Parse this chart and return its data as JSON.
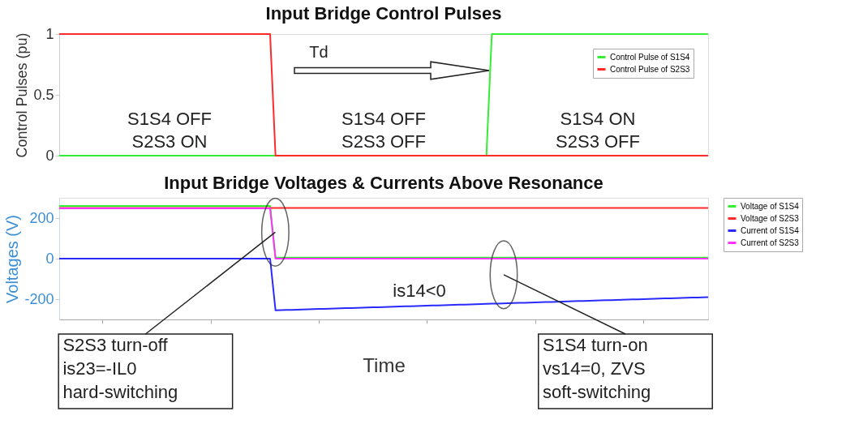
{
  "chart_data": [
    {
      "type": "line",
      "title": "Input Bridge Control Pulses",
      "ylabel": "Control Pulses (pu)",
      "ylim": [
        0,
        1
      ],
      "yticks": [
        0,
        0.5,
        1
      ],
      "tick_labels": "y",
      "legend": "top right",
      "categories": [
        null,
        null,
        null,
        null,
        null,
        null,
        null,
        null,
        null,
        null,
        null,
        null,
        null,
        null,
        null,
        null,
        null,
        null,
        null,
        null,
        null,
        null,
        null,
        null,
        null,
        null,
        null,
        null,
        null,
        null,
        null,
        null,
        null,
        null,
        null,
        null,
        null,
        null,
        null,
        null,
        null,
        null,
        null,
        null,
        null,
        null,
        null,
        null,
        null,
        null,
        null,
        null,
        null,
        null,
        null,
        null,
        null,
        null,
        null,
        null,
        null,
        null,
        null,
        null,
        null,
        null,
        null,
        null,
        null,
        null,
        null,
        null,
        null,
        null,
        null,
        null,
        null,
        null,
        null,
        null,
        null,
        null,
        null,
        null,
        null,
        null,
        null,
        null,
        null,
        null,
        null,
        null,
        null,
        null,
        null,
        null,
        null,
        null,
        null,
        null,
        null,
        null,
        null,
        null,
        null,
        null,
        null,
        null,
        null,
        null,
        null,
        null,
        null,
        null,
        null,
        null,
        null,
        null,
        null,
        null,
        null
      ],
      "series": [
        {
          "name": "Control Pulse of S1S4",
          "color": "#33ee33",
          "values": [
            0,
            0,
            0,
            0,
            0,
            0,
            0,
            0,
            0,
            0,
            0,
            0,
            0,
            0,
            0,
            0,
            0,
            0,
            0,
            0,
            0,
            0,
            0,
            0,
            0,
            0,
            0,
            0,
            0,
            0,
            0,
            0,
            0,
            0,
            0,
            0,
            0,
            0,
            0,
            0,
            0,
            0,
            0,
            0,
            0,
            0,
            0,
            0,
            0,
            0,
            0,
            0,
            0,
            0,
            0,
            0,
            0,
            0,
            0,
            0,
            0,
            0,
            0,
            0,
            0,
            0,
            0,
            0,
            0,
            0,
            0,
            0,
            0,
            0,
            0,
            0,
            0,
            0,
            0,
            0,
            1,
            1,
            1,
            1,
            1,
            1,
            1,
            1,
            1,
            1,
            1,
            1,
            1,
            1,
            1,
            1,
            1,
            1,
            1,
            1,
            1,
            1,
            1,
            1,
            1,
            1,
            1,
            1,
            1,
            1,
            1,
            1,
            1,
            1,
            1,
            1,
            1,
            1,
            1,
            1,
            1
          ]
        },
        {
          "name": "Control Pulse of S2S3",
          "color": "#ff2a2a",
          "values": [
            1,
            1,
            1,
            1,
            1,
            1,
            1,
            1,
            1,
            1,
            1,
            1,
            1,
            1,
            1,
            1,
            1,
            1,
            1,
            1,
            1,
            1,
            1,
            1,
            1,
            1,
            1,
            1,
            1,
            1,
            1,
            1,
            1,
            1,
            1,
            1,
            1,
            1,
            1,
            1,
            0,
            0,
            0,
            0,
            0,
            0,
            0,
            0,
            0,
            0,
            0,
            0,
            0,
            0,
            0,
            0,
            0,
            0,
            0,
            0,
            0,
            0,
            0,
            0,
            0,
            0,
            0,
            0,
            0,
            0,
            0,
            0,
            0,
            0,
            0,
            0,
            0,
            0,
            0,
            0,
            0,
            0,
            0,
            0,
            0,
            0,
            0,
            0,
            0,
            0,
            0,
            0,
            0,
            0,
            0,
            0,
            0,
            0,
            0,
            0,
            0,
            0,
            0,
            0,
            0,
            0,
            0,
            0,
            0,
            0,
            0,
            0,
            0,
            0,
            0,
            0,
            0,
            0,
            0,
            0,
            0
          ]
        }
      ],
      "annotations": [
        "S1S4 OFF\nS2S3 ON",
        "S1S4 OFF\nS2S3 OFF",
        "S1S4 ON\nS2S3 OFF",
        "Td"
      ]
    },
    {
      "type": "line",
      "title": "Input Bridge Voltages & Currents Above Resonance",
      "ylabel": "Voltages (V)",
      "xlabel": "Time",
      "ylim": [
        -300,
        300
      ],
      "yticks": [
        -200,
        0,
        200
      ],
      "tick_labels": "y",
      "legend": "right",
      "categories": [
        null,
        null,
        null,
        null,
        null,
        null,
        null,
        null,
        null,
        null,
        null,
        null,
        null,
        null,
        null,
        null,
        null,
        null,
        null,
        null,
        null,
        null,
        null,
        null,
        null,
        null,
        null,
        null,
        null,
        null,
        null,
        null,
        null,
        null,
        null,
        null,
        null,
        null,
        null,
        null,
        null,
        null,
        null,
        null,
        null,
        null,
        null,
        null,
        null,
        null,
        null,
        null,
        null,
        null,
        null,
        null,
        null,
        null,
        null,
        null,
        null,
        null,
        null,
        null,
        null,
        null,
        null,
        null,
        null,
        null,
        null,
        null,
        null,
        null,
        null,
        null,
        null,
        null,
        null,
        null,
        null,
        null,
        null,
        null,
        null,
        null,
        null,
        null,
        null,
        null,
        null,
        null,
        null,
        null,
        null,
        null,
        null,
        null,
        null,
        null,
        null,
        null,
        null,
        null,
        null,
        null,
        null,
        null,
        null,
        null,
        null,
        null,
        null,
        null,
        null,
        null,
        null,
        null,
        null,
        null,
        null
      ],
      "series": [
        {
          "name": "Voltage of S1S4",
          "color": "#33ee33",
          "values": [
            260,
            260,
            260,
            260,
            260,
            260,
            260,
            260,
            260,
            260,
            260,
            260,
            260,
            260,
            260,
            260,
            260,
            260,
            260,
            260,
            260,
            260,
            260,
            260,
            260,
            260,
            260,
            260,
            260,
            260,
            260,
            260,
            260,
            260,
            260,
            260,
            260,
            260,
            260,
            260,
            5,
            5,
            5,
            5,
            5,
            5,
            5,
            5,
            5,
            5,
            5,
            5,
            5,
            5,
            5,
            5,
            5,
            5,
            5,
            5,
            5,
            5,
            5,
            5,
            5,
            5,
            5,
            5,
            5,
            5,
            5,
            5,
            5,
            5,
            5,
            5,
            5,
            5,
            5,
            5,
            5,
            5,
            5,
            5,
            5,
            5,
            5,
            5,
            5,
            5,
            5,
            5,
            5,
            5,
            5,
            5,
            5,
            5,
            5,
            5,
            5,
            5,
            5,
            5,
            5,
            5,
            5,
            5,
            5,
            5,
            5,
            5,
            5,
            5,
            5,
            5,
            5,
            5,
            5,
            5,
            5
          ]
        },
        {
          "name": "Voltage of S2S3",
          "color": "#ff2a2a",
          "values": [
            250,
            250,
            250,
            250,
            250,
            250,
            250,
            250,
            250,
            250,
            250,
            250,
            250,
            250,
            250,
            250,
            250,
            250,
            250,
            250,
            250,
            250,
            250,
            250,
            250,
            250,
            250,
            250,
            250,
            250,
            250,
            250,
            250,
            250,
            250,
            250,
            250,
            250,
            250,
            250,
            250,
            250,
            250,
            250,
            250,
            250,
            250,
            250,
            250,
            250,
            250,
            250,
            250,
            250,
            250,
            250,
            250,
            250,
            250,
            250,
            250,
            250,
            250,
            250,
            250,
            250,
            250,
            250,
            250,
            250,
            250,
            250,
            250,
            250,
            250,
            250,
            250,
            250,
            250,
            250,
            250,
            250,
            250,
            250,
            250,
            250,
            250,
            250,
            250,
            250,
            250,
            250,
            250,
            250,
            250,
            250,
            250,
            250,
            250,
            250,
            250,
            250,
            250,
            250,
            250,
            250,
            250,
            250,
            250,
            250,
            250,
            250,
            250,
            250,
            250,
            250,
            250,
            250,
            250,
            250,
            250
          ]
        },
        {
          "name": "Current of S1S4",
          "color": "#2a2aff",
          "values": [
            0,
            0,
            0,
            0,
            0,
            0,
            0,
            0,
            0,
            0,
            0,
            0,
            0,
            0,
            0,
            0,
            0,
            0,
            0,
            0,
            0,
            0,
            0,
            0,
            0,
            0,
            0,
            0,
            0,
            0,
            0,
            0,
            0,
            0,
            0,
            0,
            0,
            0,
            0,
            0,
            -255,
            -254,
            -253,
            -253,
            -252,
            -251,
            -250,
            -249,
            -248,
            -248,
            -247,
            -246,
            -245,
            -244,
            -244,
            -243,
            -242,
            -241,
            -240,
            -240,
            -239,
            -238,
            -237,
            -236,
            -235,
            -235,
            -234,
            -233,
            -232,
            -231,
            -231,
            -230,
            -229,
            -228,
            -227,
            -227,
            -226,
            -225,
            -224,
            -223,
            -222,
            -222,
            -221,
            -220,
            -219,
            -218,
            -218,
            -217,
            -216,
            -215,
            -214,
            -214,
            -213,
            -212,
            -211,
            -210,
            -209,
            -209,
            -208,
            -207,
            -206,
            -205,
            -205,
            -204,
            -203,
            -202,
            -201,
            -201,
            -200,
            -199,
            -198,
            -197,
            -196,
            -196,
            -195,
            -194,
            -193,
            -192,
            -192,
            -191,
            -190
          ]
        },
        {
          "name": "Current of S2S3",
          "color": "#ff33ff",
          "values": [
            248,
            248,
            248,
            248,
            248,
            248,
            248,
            248,
            248,
            248,
            248,
            248,
            248,
            248,
            248,
            248,
            248,
            248,
            248,
            248,
            248,
            248,
            248,
            248,
            248,
            248,
            248,
            248,
            248,
            248,
            248,
            248,
            248,
            248,
            248,
            248,
            248,
            248,
            248,
            248,
            0,
            0,
            0,
            0,
            0,
            0,
            0,
            0,
            0,
            0,
            0,
            0,
            0,
            0,
            0,
            0,
            0,
            0,
            0,
            0,
            0,
            0,
            0,
            0,
            0,
            0,
            0,
            0,
            0,
            0,
            0,
            0,
            0,
            0,
            0,
            0,
            0,
            0,
            0,
            0,
            0,
            0,
            0,
            0,
            0,
            0,
            0,
            0,
            0,
            0,
            0,
            0,
            0,
            0,
            0,
            0,
            0,
            0,
            0,
            0,
            0,
            0,
            0,
            0,
            0,
            0,
            0,
            0,
            0,
            0,
            0,
            0,
            0,
            0,
            0,
            0,
            0,
            0,
            0,
            0,
            0
          ]
        }
      ],
      "annotations": [
        "S2S3 turn-off\nis23=-IL0\nhard-switching",
        "S1S4 turn-on\nvs14=0, ZVS\nsoft-switching",
        "is14<0"
      ]
    }
  ]
}
